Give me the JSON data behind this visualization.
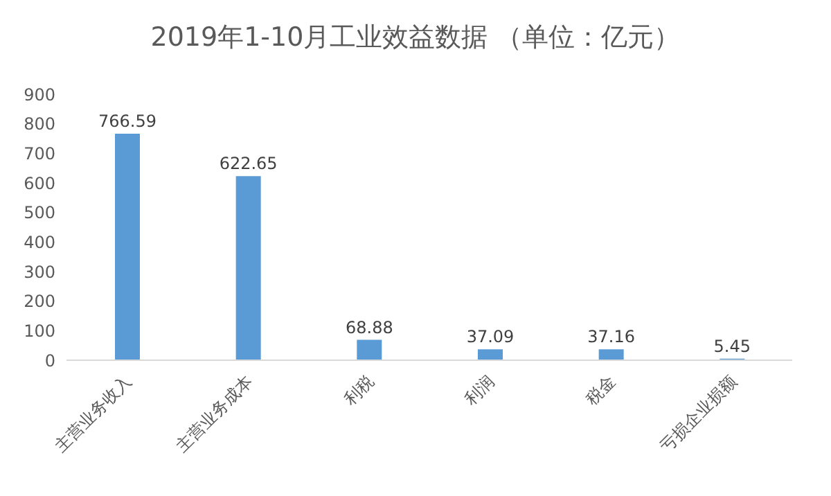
{
  "chart_data": {
    "type": "bar",
    "title": "2019年1-10月工业效益数据 （单位：亿元）",
    "categories": [
      "主营业务收入",
      "主营业务成本",
      "利税",
      "利润",
      "税金",
      "亏损企业损额"
    ],
    "values": [
      766.59,
      622.65,
      68.88,
      37.09,
      37.16,
      5.45
    ],
    "color": "#5b9bd5",
    "data_labels": true,
    "ylim": [
      0,
      900
    ],
    "yticks": [
      0,
      100,
      200,
      300,
      400,
      500,
      600,
      700,
      800,
      900
    ],
    "grid": false
  }
}
